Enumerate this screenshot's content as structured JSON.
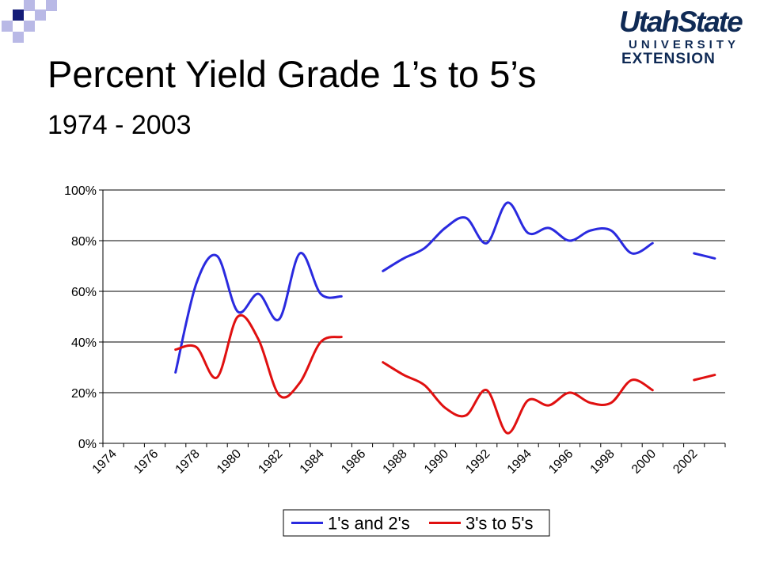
{
  "header": {
    "title": "Percent Yield Grade 1’s to 5’s",
    "subtitle": "1974 - 2003",
    "logo": {
      "line1": "UtahState",
      "line2": "UNIVERSITY",
      "line3": "EXTENSION"
    }
  },
  "colors": {
    "series1": "#2a2adf",
    "series2": "#e01010",
    "logo": "#0f2a55",
    "deco_dark": "#141c78",
    "deco_light": "#b9b9e6"
  },
  "chart_data": {
    "type": "line",
    "title": "",
    "xlabel": "",
    "ylabel": "",
    "ylim": [
      0,
      100
    ],
    "yticks": [
      "0%",
      "20%",
      "40%",
      "60%",
      "80%",
      "100%"
    ],
    "xticks": [
      "1974",
      "1976",
      "1978",
      "1980",
      "1982",
      "1984",
      "1986",
      "1988",
      "1990",
      "1992",
      "1994",
      "1996",
      "1998",
      "2000",
      "2002"
    ],
    "years": [
      1974,
      1975,
      1976,
      1977,
      1978,
      1979,
      1980,
      1981,
      1982,
      1983,
      1984,
      1985,
      1986,
      1987,
      1988,
      1989,
      1990,
      1991,
      1992,
      1993,
      1994,
      1995,
      1996,
      1997,
      1998,
      1999,
      2000,
      2001,
      2002,
      2003
    ],
    "grid": "horizontal",
    "legend_position": "bottom",
    "series": [
      {
        "name": "1's and 2's",
        "values": [
          null,
          null,
          null,
          28,
          63,
          74,
          52,
          59,
          49,
          75,
          59,
          58,
          null,
          68,
          73,
          77,
          85,
          89,
          79,
          95,
          83,
          85,
          80,
          84,
          84,
          75,
          79,
          null,
          75,
          73
        ]
      },
      {
        "name": "3's to 5's",
        "values": [
          null,
          null,
          null,
          37,
          38,
          26,
          50,
          41,
          19,
          24,
          40,
          42,
          null,
          32,
          27,
          23,
          14,
          11,
          21,
          4,
          17,
          15,
          20,
          16,
          16,
          25,
          21,
          null,
          25,
          27
        ]
      }
    ]
  }
}
